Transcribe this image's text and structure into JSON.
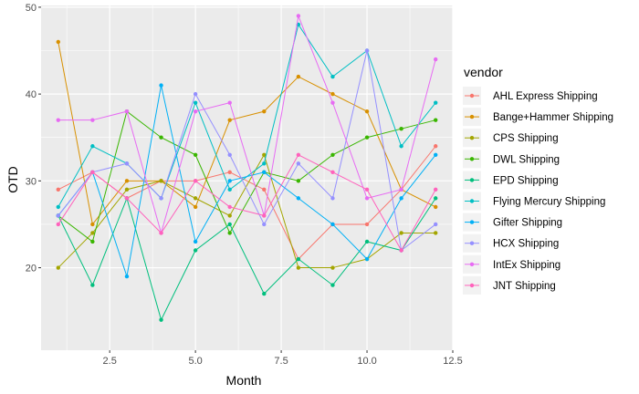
{
  "chart_data": {
    "type": "line",
    "title": "",
    "xlabel": "Month",
    "ylabel": "OTD",
    "xlim": [
      0.5,
      12.5
    ],
    "ylim": [
      10.5,
      50.2
    ],
    "x_ticks": [
      2.5,
      5.0,
      7.5,
      10.0,
      12.5
    ],
    "x_tick_labels": [
      "2.5",
      "5.0",
      "7.5",
      "10.0",
      "12.5"
    ],
    "y_ticks": [
      20,
      30,
      40,
      50
    ],
    "y_tick_labels": [
      "20",
      "30",
      "40",
      "50"
    ],
    "grid": true,
    "legend_title": "vendor",
    "legend_position": "right",
    "x": [
      1,
      2,
      3,
      4,
      5,
      6,
      7,
      8,
      9,
      10,
      11,
      12
    ],
    "series": [
      {
        "name": "AHL Express Shipping",
        "color": "#F8766D",
        "values": [
          29,
          31,
          28,
          30,
          30,
          31,
          29,
          21,
          25,
          25,
          29,
          34
        ]
      },
      {
        "name": "Bange+Hammer Shipping",
        "color": "#D89000",
        "values": [
          46,
          25,
          30,
          30,
          27,
          37,
          38,
          42,
          40,
          38,
          29,
          27
        ]
      },
      {
        "name": "CPS Shipping",
        "color": "#A3A500",
        "values": [
          20,
          24,
          29,
          30,
          28,
          26,
          33,
          20,
          20,
          21,
          24,
          24
        ]
      },
      {
        "name": "DWL Shipping",
        "color": "#39B600",
        "values": [
          26,
          23,
          38,
          35,
          33,
          24,
          31,
          30,
          33,
          35,
          36,
          37
        ]
      },
      {
        "name": "EPD Shipping",
        "color": "#00BF7D",
        "values": [
          26,
          18,
          28,
          14,
          22,
          25,
          17,
          21,
          18,
          23,
          22,
          28
        ]
      },
      {
        "name": "Flying Mercury Shipping",
        "color": "#00BFC4",
        "values": [
          27,
          34,
          32,
          28,
          39,
          29,
          32,
          48,
          42,
          45,
          34,
          39
        ]
      },
      {
        "name": "Gifter Shipping",
        "color": "#00B0F6",
        "values": [
          26,
          31,
          19,
          41,
          23,
          30,
          31,
          28,
          25,
          21,
          28,
          33
        ]
      },
      {
        "name": "HCX Shipping",
        "color": "#9590FF",
        "values": [
          26,
          31,
          32,
          28,
          40,
          33,
          25,
          32,
          28,
          45,
          22,
          25
        ]
      },
      {
        "name": "IntEx Shipping",
        "color": "#E76BF3",
        "values": [
          37,
          37,
          38,
          24,
          38,
          39,
          26,
          49,
          39,
          28,
          29,
          44
        ]
      },
      {
        "name": "JNT Shipping",
        "color": "#FF62BC",
        "values": [
          25,
          31,
          28,
          24,
          30,
          27,
          26,
          33,
          31,
          29,
          22,
          29
        ]
      }
    ]
  }
}
